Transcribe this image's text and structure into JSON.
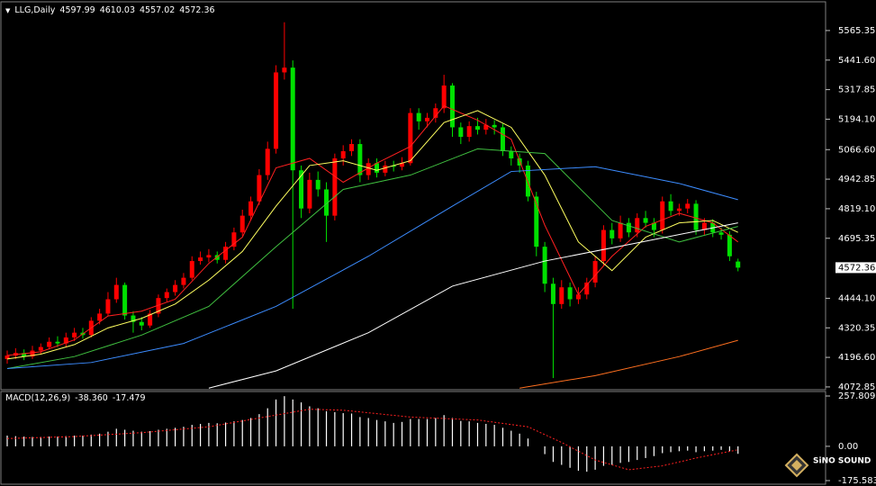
{
  "chart_data": [
    {
      "type": "candlestick",
      "title": "LLG,Daily",
      "categories": [
        null,
        null,
        null,
        null,
        null,
        null,
        null,
        null,
        null,
        null,
        null,
        null,
        null,
        null,
        null,
        null,
        null,
        null,
        null,
        null,
        null,
        null,
        null,
        null,
        null,
        null,
        null,
        null,
        null,
        null,
        null,
        null,
        null,
        null,
        null,
        null,
        null,
        null,
        null,
        null,
        null,
        null,
        null,
        null,
        null,
        null,
        null,
        null,
        null,
        null,
        null,
        null,
        null,
        null,
        null,
        null,
        null,
        null,
        null,
        null,
        null,
        null,
        null,
        null,
        null,
        null,
        null,
        null,
        null,
        null,
        null,
        null,
        null,
        null,
        null,
        null,
        null,
        null,
        null,
        null,
        null,
        null,
        null,
        null,
        null,
        null,
        null,
        null
      ],
      "open": [
        4190,
        4204,
        4215,
        4200,
        4225,
        4240,
        4262,
        4255,
        4280,
        4300,
        4290,
        4350,
        4380,
        4440,
        4500,
        4372,
        4345,
        4330,
        4380,
        4445,
        4470,
        4500,
        4530,
        4600,
        4615,
        4625,
        4605,
        4660,
        4720,
        4790,
        4850,
        4960,
        5070,
        5390,
        5410,
        4980,
        4820,
        4940,
        4900,
        4790,
        5030,
        5060,
        5090,
        4960,
        5010,
        4970,
        5000,
        4995,
        5010,
        5220,
        5185,
        5200,
        5240,
        5335,
        5160,
        5120,
        5165,
        5150,
        5170,
        5160,
        5060,
        5030,
        5000,
        4870,
        4660,
        4505,
        4420,
        4490,
        4440,
        4460,
        4510,
        4600,
        4730,
        4695,
        4760,
        4720,
        4780,
        4760,
        4730,
        4850,
        4810,
        4820,
        4840,
        4730,
        4760,
        4720,
        4710,
        4597.99
      ],
      "high": [
        4225,
        4235,
        4230,
        4245,
        4255,
        4280,
        4285,
        4300,
        4320,
        4320,
        4365,
        4400,
        4470,
        4530,
        4510,
        4390,
        4365,
        4395,
        4460,
        4485,
        4520,
        4550,
        4620,
        4640,
        4650,
        4640,
        4680,
        4740,
        4815,
        4870,
        4985,
        5100,
        5420,
        5600,
        5440,
        5000,
        4970,
        4975,
        4930,
        5050,
        5085,
        5110,
        5110,
        5030,
        5030,
        5020,
        5020,
        5035,
        5240,
        5240,
        5220,
        5260,
        5380,
        5345,
        5180,
        5185,
        5200,
        5195,
        5190,
        5175,
        5080,
        5050,
        5020,
        4890,
        4680,
        4530,
        4520,
        4510,
        4490,
        4530,
        4620,
        4750,
        4760,
        4790,
        4780,
        4800,
        4810,
        4780,
        4870,
        4880,
        4840,
        4860,
        4855,
        4780,
        4775,
        4740,
        4725,
        4610.03
      ],
      "low": [
        4170,
        4190,
        4185,
        4190,
        4210,
        4230,
        4240,
        4240,
        4265,
        4275,
        4280,
        4335,
        4370,
        4425,
        4355,
        4300,
        4310,
        4320,
        4365,
        4430,
        4455,
        4485,
        4520,
        4585,
        4595,
        4590,
        4590,
        4645,
        4705,
        4770,
        4835,
        4940,
        5050,
        5360,
        4400,
        4780,
        4800,
        4870,
        4680,
        4770,
        5000,
        5040,
        4930,
        4940,
        4950,
        4955,
        4975,
        4980,
        5000,
        5150,
        5160,
        5180,
        5220,
        5120,
        5090,
        5100,
        5130,
        5130,
        5130,
        5040,
        5000,
        4970,
        4850,
        4620,
        4470,
        4110,
        4400,
        4410,
        4420,
        4440,
        4490,
        4580,
        4670,
        4680,
        4700,
        4700,
        4740,
        4700,
        4715,
        4790,
        4790,
        4800,
        4710,
        4710,
        4700,
        4690,
        4600,
        4557.02
      ],
      "close": [
        4204,
        4215,
        4200,
        4225,
        4240,
        4262,
        4255,
        4280,
        4300,
        4290,
        4350,
        4380,
        4440,
        4500,
        4372,
        4345,
        4330,
        4380,
        4445,
        4470,
        4500,
        4530,
        4600,
        4615,
        4625,
        4605,
        4660,
        4720,
        4790,
        4850,
        4960,
        5070,
        5390,
        5410,
        4980,
        4820,
        4940,
        4900,
        4790,
        5030,
        5060,
        5090,
        4960,
        5010,
        4970,
        5000,
        4995,
        5010,
        5220,
        5185,
        5200,
        5240,
        5335,
        5160,
        5120,
        5165,
        5150,
        5170,
        5160,
        5060,
        5030,
        5000,
        4870,
        4660,
        4505,
        4420,
        4490,
        4440,
        4460,
        4510,
        4600,
        4730,
        4695,
        4760,
        4720,
        4780,
        4760,
        4730,
        4850,
        4810,
        4820,
        4840,
        4730,
        4760,
        4720,
        4710,
        4620,
        4572.36
      ],
      "up_color": "#ff0000",
      "down_color": "#00e000",
      "series": [
        {
          "color": "#ff2020",
          "x": [
            0,
            4,
            8,
            12,
            16,
            20,
            24,
            28,
            32,
            36,
            40,
            44,
            48,
            52,
            56,
            60,
            64,
            68,
            72,
            76,
            80,
            84,
            87
          ],
          "values": [
            4205,
            4220,
            4270,
            4370,
            4390,
            4440,
            4590,
            4700,
            4990,
            5030,
            4930,
            5010,
            5080,
            5250,
            5190,
            5110,
            4750,
            4460,
            4620,
            4745,
            4800,
            4760,
            4680
          ]
        },
        {
          "color": "#ffff60",
          "x": [
            0,
            4,
            8,
            12,
            16,
            20,
            24,
            28,
            32,
            36,
            40,
            44,
            48,
            52,
            56,
            60,
            64,
            68,
            72,
            76,
            80,
            84,
            87
          ],
          "values": [
            4190,
            4210,
            4250,
            4320,
            4360,
            4420,
            4520,
            4640,
            4830,
            5000,
            5020,
            4980,
            5020,
            5180,
            5230,
            5160,
            4960,
            4680,
            4560,
            4700,
            4760,
            4770,
            4720
          ]
        },
        {
          "color": "#40c040",
          "x": [
            0,
            8,
            16,
            24,
            32,
            40,
            48,
            56,
            64,
            72,
            80,
            87
          ],
          "values": [
            4150,
            4200,
            4290,
            4410,
            4660,
            4900,
            4960,
            5070,
            5050,
            4770,
            4680,
            4745
          ]
        },
        {
          "color": "#3c8cff",
          "x": [
            0,
            10,
            21,
            32,
            43,
            53,
            60,
            70,
            80,
            87
          ],
          "values": [
            4150,
            4175,
            4255,
            4410,
            4620,
            4830,
            4975,
            4995,
            4925,
            4857
          ]
        },
        {
          "color": "#ffffff",
          "x": [
            24,
            32,
            43,
            53,
            64,
            75,
            87
          ],
          "values": [
            4068,
            4140,
            4300,
            4495,
            4600,
            4676,
            4760
          ]
        },
        {
          "color": "#ff7020",
          "x": [
            61,
            70,
            80,
            87
          ],
          "values": [
            4068,
            4120,
            4200,
            4268
          ]
        }
      ],
      "ylim": [
        4065,
        5648
      ],
      "yticks": [
        5565.35,
        {
          "value": 5441.6,
          "label": "5441.60"
        },
        5317.85,
        {
          "value": 5194.1,
          "label": "5194.10"
        },
        {
          "value": 5066.6,
          "label": "5066.60"
        },
        4942.85,
        {
          "value": 4819.1,
          "label": "4819.10"
        },
        4695.35,
        {
          "value": 4444.1,
          "label": "4444.10"
        },
        4320.35,
        {
          "value": 4196.6,
          "label": "4196.60"
        },
        4072.85
      ]
    },
    {
      "type": "bar",
      "title": "MACD(12,26,9)",
      "readout": [
        {
          "value": -38.36,
          "label": "-38.360"
        },
        -17.479
      ],
      "categories": [
        null,
        null,
        null,
        null,
        null,
        null,
        null,
        null,
        null,
        null,
        null,
        null,
        null,
        null,
        null,
        null,
        null,
        null,
        null,
        null,
        null,
        null,
        null,
        null,
        null,
        null,
        null,
        null,
        null,
        null,
        null,
        null,
        null,
        null,
        null,
        null,
        null,
        null,
        null,
        null,
        null,
        null,
        null,
        null,
        null,
        null,
        null,
        null,
        null,
        null,
        null,
        null,
        null,
        null,
        null,
        null,
        null,
        null,
        null,
        null,
        null,
        null,
        null,
        null,
        null,
        null,
        null,
        null,
        null,
        null,
        null,
        null,
        null,
        null,
        null,
        null,
        null,
        null,
        null,
        null,
        null,
        null,
        null,
        null,
        null,
        null,
        null,
        null
      ],
      "series": [
        {
          "color": "#ffffff",
          "values": [
            55,
            52,
            50,
            48,
            48,
            50,
            50,
            52,
            55,
            55,
            60,
            65,
            75,
            90,
            85,
            80,
            75,
            78,
            85,
            90,
            95,
            100,
            110,
            115,
            120,
            118,
            122,
            128,
            135,
            145,
            165,
            195,
            240,
            257,
            240,
            225,
            205,
            195,
            180,
            175,
            170,
            168,
            150,
            145,
            135,
            128,
            120,
            125,
            140,
            140,
            140,
            145,
            160,
            145,
            130,
            128,
            120,
            115,
            110,
            95,
            80,
            65,
            40,
            0,
            -40,
            -80,
            -95,
            -110,
            -125,
            -130,
            -120,
            -100,
            -95,
            -85,
            -80,
            -70,
            -60,
            -50,
            -35,
            -30,
            -25,
            -22,
            -30,
            -25,
            -22,
            -18,
            -25,
            -38.36
          ]
        },
        {
          "color": "#ff2020",
          "x": [
            0,
            8,
            16,
            24,
            32,
            36,
            40,
            48,
            56,
            62,
            66,
            70,
            74,
            78,
            82,
            87
          ],
          "values": [
            40,
            50,
            70,
            100,
            160,
            190,
            185,
            150,
            135,
            100,
            20,
            -70,
            -120,
            -100,
            -60,
            -17.479
          ]
        }
      ],
      "ylim": [
        -175.583,
        257.809
      ],
      "yticks": [
        257.809,
        {
          "value": 0,
          "label": "0.00"
        },
        -175.583
      ]
    }
  ],
  "watermark": "SiNO SOUND"
}
